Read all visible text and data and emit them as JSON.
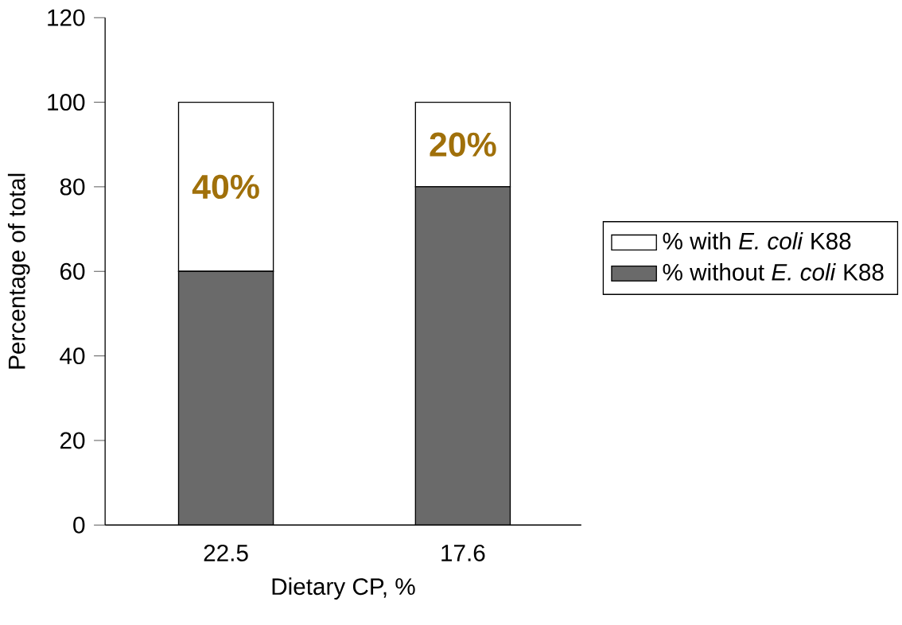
{
  "chart_data": {
    "type": "bar",
    "stacked": true,
    "xlabel": "Dietary CP, %",
    "ylabel": "Percentage of total",
    "categories": [
      "22.5",
      "17.6"
    ],
    "ylim": [
      0,
      120
    ],
    "yticks": [
      0,
      20,
      40,
      60,
      80,
      100,
      120
    ],
    "legend": "right",
    "series": [
      {
        "name": "% without *E. coli* K88",
        "color": "#6a6a6a",
        "values": [
          60,
          80
        ]
      },
      {
        "name": "% with *E. coli* K88",
        "color": "#ffffff",
        "values": [
          40,
          20
        ],
        "value_labels": [
          "40%",
          "20%"
        ]
      }
    ]
  }
}
